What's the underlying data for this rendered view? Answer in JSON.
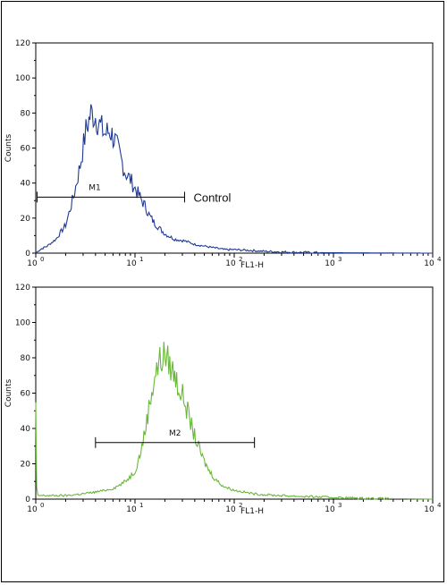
{
  "chart_data": [
    {
      "type": "line",
      "title": "",
      "xlabel": "FL1-H",
      "ylabel": "Counts",
      "xscale": "log",
      "xlim": [
        1,
        10000
      ],
      "ylim": [
        0,
        120
      ],
      "y_ticks": [
        "0",
        "20",
        "40",
        "60",
        "80",
        "100",
        "120"
      ],
      "x_ticks": [
        {
          "base": "10",
          "exp": "0"
        },
        {
          "base": "10",
          "exp": "1"
        },
        {
          "base": "10",
          "exp": "2"
        },
        {
          "base": "10",
          "exp": "3"
        },
        {
          "base": "10",
          "exp": "4"
        }
      ],
      "grid": false,
      "series": [
        {
          "color": "#1f3a93",
          "x": [
            1,
            1.1,
            1.3,
            1.6,
            2.0,
            2.4,
            2.8,
            3.2,
            3.6,
            4.0,
            4.5,
            5.0,
            5.6,
            6.3,
            7.1,
            8.0,
            9.0,
            10,
            11.2,
            12.6,
            14.1,
            15.8,
            17.8,
            20,
            25,
            31.6,
            40,
            50,
            63,
            80,
            100,
            150,
            200,
            400,
            1000,
            10000
          ],
          "y": [
            0,
            2,
            4,
            8,
            16,
            32,
            50,
            70,
            80,
            78,
            72,
            68,
            70,
            64,
            55,
            46,
            42,
            37,
            32,
            27,
            21,
            17,
            14,
            11,
            8,
            7,
            5,
            4,
            3,
            2,
            2,
            1.5,
            1,
            0.5,
            0.2,
            0
          ]
        }
      ],
      "markers": [
        {
          "label": "M1",
          "x_start": 1.03,
          "x_end": 31.6,
          "y": 32,
          "annotation": "Control"
        }
      ]
    },
    {
      "type": "line",
      "title": "",
      "xlabel": "FL1-H",
      "ylabel": "Counts",
      "xscale": "log",
      "xlim": [
        1,
        10000
      ],
      "ylim": [
        0,
        120
      ],
      "y_ticks": [
        "0",
        "20",
        "40",
        "60",
        "80",
        "100",
        "120"
      ],
      "x_ticks": [
        {
          "base": "10",
          "exp": "0"
        },
        {
          "base": "10",
          "exp": "1"
        },
        {
          "base": "10",
          "exp": "2"
        },
        {
          "base": "10",
          "exp": "3"
        },
        {
          "base": "10",
          "exp": "4"
        }
      ],
      "grid": false,
      "series": [
        {
          "color": "#6ab83a",
          "x": [
            1,
            1.02,
            1.05,
            1.2,
            2,
            3,
            4,
            5,
            6,
            7,
            8,
            9,
            10,
            11.2,
            12.6,
            14.1,
            15.8,
            17.8,
            20,
            22.4,
            25.1,
            28.2,
            31.6,
            35.5,
            39.8,
            44.7,
            50,
            56,
            63,
            71,
            80,
            100,
            126,
            158,
            200,
            300,
            500,
            1000,
            2000,
            10000
          ],
          "y": [
            52,
            6,
            2,
            2,
            2,
            3,
            4,
            5,
            6,
            8,
            10,
            13,
            16,
            25,
            38,
            55,
            70,
            78,
            82,
            76,
            70,
            62,
            56,
            45,
            36,
            28,
            21,
            16,
            12,
            9,
            7,
            5,
            4,
            3,
            2.5,
            2,
            1.5,
            1,
            0.5,
            0
          ]
        }
      ],
      "markers": [
        {
          "label": "M2",
          "x_start": 4,
          "x_end": 160,
          "y": 32,
          "annotation": ""
        }
      ]
    }
  ]
}
